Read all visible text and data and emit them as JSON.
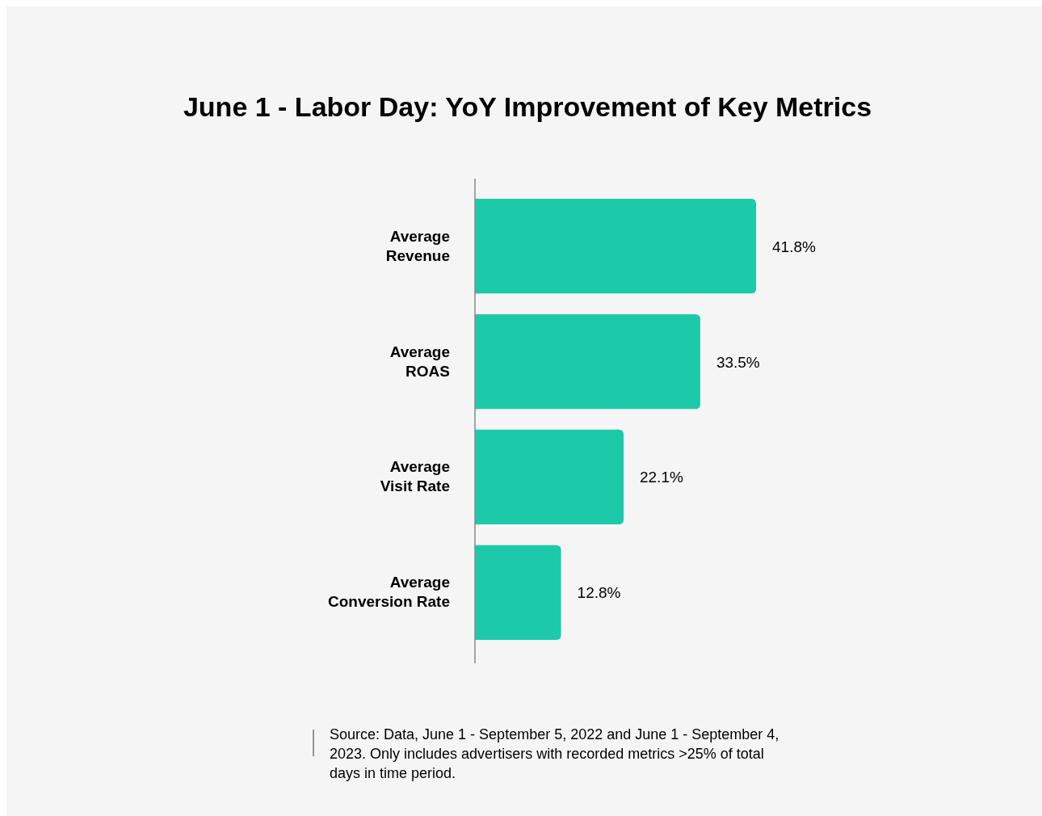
{
  "chart_data": {
    "type": "bar",
    "orientation": "horizontal",
    "title": "June 1 - Labor Day: YoY Improvement of Key Metrics",
    "categories": [
      "Average Revenue",
      "Average ROAS",
      "Average Visit Rate",
      "Average Conversion Rate"
    ],
    "values": [
      41.8,
      33.5,
      22.1,
      12.8
    ],
    "value_labels": [
      "41.8%",
      "33.5%",
      "22.1%",
      "12.8%"
    ],
    "color": "#1ccaaa",
    "annotations": [
      "Source: Data, June 1 - September 5, 2022 and June 1 - September 4, 2023. Only includes advertisers with recorded metrics >25% of total days in time period."
    ]
  }
}
